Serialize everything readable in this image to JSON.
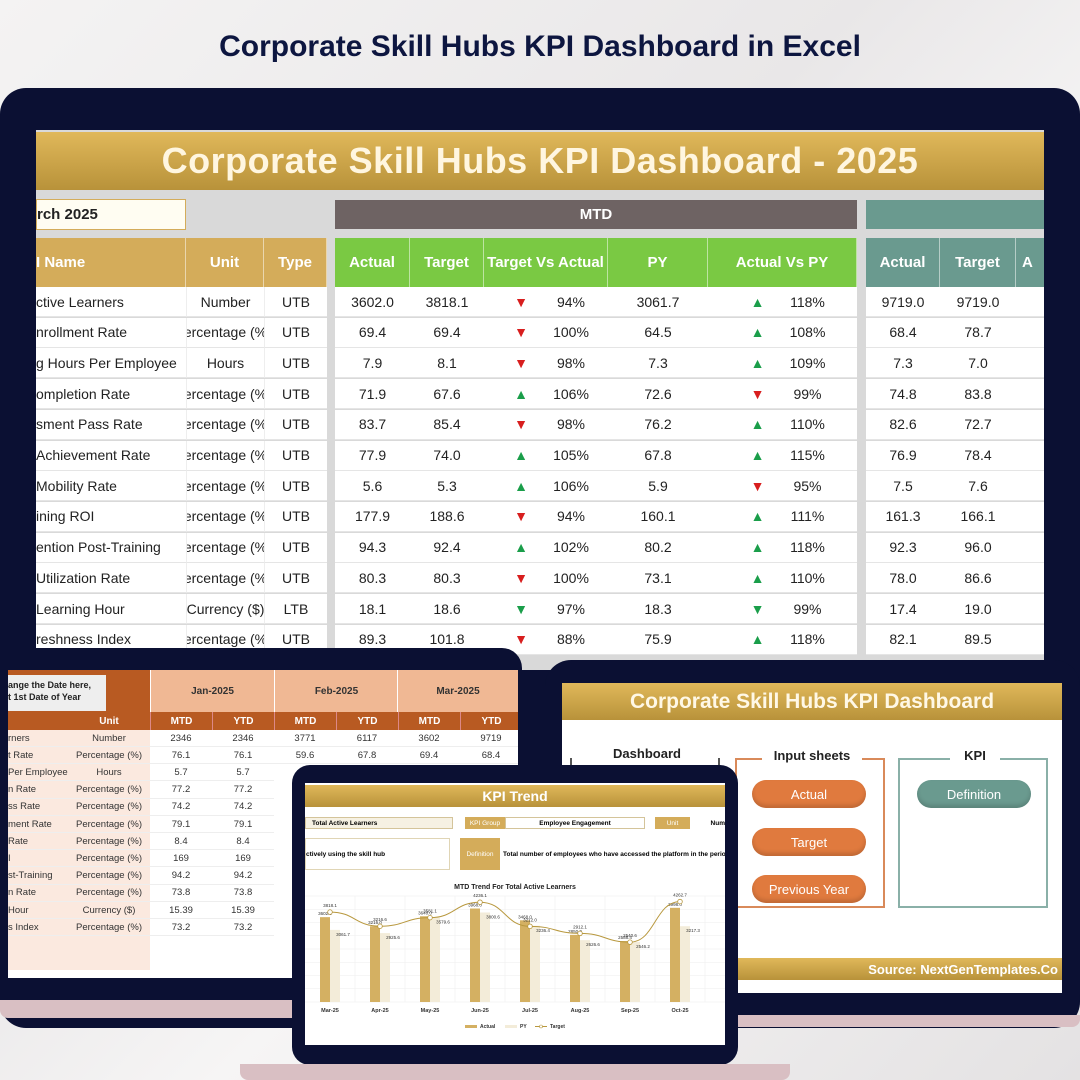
{
  "page_title": "Corporate Skill Hubs KPI Dashboard in Excel",
  "main": {
    "title": "Corporate Skill Hubs KPI Dashboard - 2025",
    "month_value": "rch 2025",
    "mtd_label": "MTD",
    "headers": {
      "name": "I Name",
      "unit": "Unit",
      "type": "Type",
      "actual": "Actual",
      "target": "Target",
      "tva": "Target Vs Actual",
      "py": "PY",
      "avpy": "Actual Vs PY",
      "ytd_actual": "Actual",
      "ytd_target": "Target",
      "ytd_next": "A"
    },
    "colors": {
      "gold": "#d4ac5a",
      "mtd_header": "#6e6363",
      "mtd_green": "#7ac943",
      "ytd_teal": "#6a9a8f",
      "up": "#1a9e4a",
      "down": "#d81e1e"
    },
    "rows": [
      {
        "name": "ctive Learners",
        "unit": "Number",
        "type": "UTB",
        "actual": "3602.0",
        "target": "3818.1",
        "tva_dir": "down",
        "tva_color": "red",
        "tva": "94%",
        "py": "3061.7",
        "avpy_dir": "up",
        "avpy_color": "green",
        "avpy": "118%",
        "ytd_actual": "9719.0",
        "ytd_target": "9719.0"
      },
      {
        "name": "nrollment Rate",
        "unit": "ercentage (%",
        "type": "UTB",
        "actual": "69.4",
        "target": "69.4",
        "tva_dir": "down",
        "tva_color": "red",
        "tva": "100%",
        "py": "64.5",
        "avpy_dir": "up",
        "avpy_color": "green",
        "avpy": "108%",
        "ytd_actual": "68.4",
        "ytd_target": "78.7"
      },
      {
        "name": "g Hours Per Employee",
        "unit": "Hours",
        "type": "UTB",
        "actual": "7.9",
        "target": "8.1",
        "tva_dir": "down",
        "tva_color": "red",
        "tva": "98%",
        "py": "7.3",
        "avpy_dir": "up",
        "avpy_color": "green",
        "avpy": "109%",
        "ytd_actual": "7.3",
        "ytd_target": "7.0"
      },
      {
        "name": "ompletion Rate",
        "unit": "ercentage (%",
        "type": "UTB",
        "actual": "71.9",
        "target": "67.6",
        "tva_dir": "up",
        "tva_color": "green",
        "tva": "106%",
        "py": "72.6",
        "avpy_dir": "down",
        "avpy_color": "red",
        "avpy": "99%",
        "ytd_actual": "74.8",
        "ytd_target": "83.8"
      },
      {
        "name": "sment Pass Rate",
        "unit": "ercentage (%",
        "type": "UTB",
        "actual": "83.7",
        "target": "85.4",
        "tva_dir": "down",
        "tva_color": "red",
        "tva": "98%",
        "py": "76.2",
        "avpy_dir": "up",
        "avpy_color": "green",
        "avpy": "110%",
        "ytd_actual": "82.6",
        "ytd_target": "72.7"
      },
      {
        "name": " Achievement Rate",
        "unit": "ercentage (%",
        "type": "UTB",
        "actual": "77.9",
        "target": "74.0",
        "tva_dir": "up",
        "tva_color": "green",
        "tva": "105%",
        "py": "67.8",
        "avpy_dir": "up",
        "avpy_color": "green",
        "avpy": "115%",
        "ytd_actual": "76.9",
        "ytd_target": "78.4"
      },
      {
        "name": " Mobility Rate",
        "unit": "ercentage (%",
        "type": "UTB",
        "actual": "5.6",
        "target": "5.3",
        "tva_dir": "up",
        "tva_color": "green",
        "tva": "106%",
        "py": "5.9",
        "avpy_dir": "down",
        "avpy_color": "red",
        "avpy": "95%",
        "ytd_actual": "7.5",
        "ytd_target": "7.6"
      },
      {
        "name": "ining ROI",
        "unit": "ercentage (%",
        "type": "UTB",
        "actual": "177.9",
        "target": "188.6",
        "tva_dir": "down",
        "tva_color": "red",
        "tva": "94%",
        "py": "160.1",
        "avpy_dir": "up",
        "avpy_color": "green",
        "avpy": "111%",
        "ytd_actual": "161.3",
        "ytd_target": "166.1"
      },
      {
        "name": "ention Post-Training",
        "unit": "ercentage (%",
        "type": "UTB",
        "actual": "94.3",
        "target": "92.4",
        "tva_dir": "up",
        "tva_color": "green",
        "tva": "102%",
        "py": "80.2",
        "avpy_dir": "up",
        "avpy_color": "green",
        "avpy": "118%",
        "ytd_actual": "92.3",
        "ytd_target": "96.0"
      },
      {
        "name": " Utilization Rate",
        "unit": "ercentage (%",
        "type": "UTB",
        "actual": "80.3",
        "target": "80.3",
        "tva_dir": "down",
        "tva_color": "red",
        "tva": "100%",
        "py": "73.1",
        "avpy_dir": "up",
        "avpy_color": "green",
        "avpy": "110%",
        "ytd_actual": "78.0",
        "ytd_target": "86.6"
      },
      {
        "name": " Learning Hour",
        "unit": "Currency ($)",
        "type": "LTB",
        "actual": "18.1",
        "target": "18.6",
        "tva_dir": "down",
        "tva_color": "green",
        "tva": "97%",
        "py": "18.3",
        "avpy_dir": "down",
        "avpy_color": "green",
        "avpy": "99%",
        "ytd_actual": "17.4",
        "ytd_target": "19.0"
      },
      {
        "name": "reshness Index",
        "unit": "ercentage (%",
        "type": "UTB",
        "actual": "89.3",
        "target": "101.8",
        "tva_dir": "down",
        "tva_color": "red",
        "tva": "88%",
        "py": "75.9",
        "avpy_dir": "up",
        "avpy_color": "green",
        "avpy": "118%",
        "ytd_actual": "82.1",
        "ytd_target": "89.5"
      }
    ]
  },
  "data_sheet": {
    "callout": [
      "ange the Date here,",
      "t 1st Date of Year"
    ],
    "months": [
      "Jan-2025",
      "Feb-2025",
      "Mar-2025"
    ],
    "unit_header": "Unit",
    "mtd": "MTD",
    "ytd": "YTD",
    "rows": [
      {
        "name": "rners",
        "unit": "Number",
        "vals": [
          "2346",
          "2346",
          "3771",
          "6117",
          "3602",
          "9719"
        ]
      },
      {
        "name": "t Rate",
        "unit": "Percentage (%)",
        "vals": [
          "76.1",
          "76.1",
          "59.6",
          "67.8",
          "69.4",
          "68.4"
        ]
      },
      {
        "name": "Per Employee",
        "unit": "Hours",
        "vals": [
          "5.7",
          "5.7"
        ]
      },
      {
        "name": "n Rate",
        "unit": "Percentage (%)",
        "vals": [
          "77.2",
          "77.2"
        ]
      },
      {
        "name": "ss Rate",
        "unit": "Percentage (%)",
        "vals": [
          "74.2",
          "74.2"
        ]
      },
      {
        "name": "ment Rate",
        "unit": "Percentage (%)",
        "vals": [
          "79.1",
          "79.1"
        ]
      },
      {
        "name": "Rate",
        "unit": "Percentage (%)",
        "vals": [
          "8.4",
          "8.4"
        ]
      },
      {
        "name": "I",
        "unit": "Percentage (%)",
        "vals": [
          "169",
          "169"
        ]
      },
      {
        "name": "st-Training",
        "unit": "Percentage (%)",
        "vals": [
          "94.2",
          "94.2"
        ]
      },
      {
        "name": "n Rate",
        "unit": "Percentage (%)",
        "vals": [
          "73.8",
          "73.8"
        ]
      },
      {
        "name": "Hour",
        "unit": "Currency ($)",
        "vals": [
          "15.39",
          "15.39"
        ]
      },
      {
        "name": "s Index",
        "unit": "Percentage (%)",
        "vals": [
          "73.2",
          "73.2"
        ]
      }
    ]
  },
  "kpi_trend": {
    "title": "KPI Trend",
    "kpi_name": "Total Active Learners",
    "kpi_group_label": "KPI Group",
    "kpi_group": "Employee Engagement",
    "unit_label": "Unit",
    "unit": "Num",
    "formula_text": "ctively using the skill hub",
    "definition_label": "Definition",
    "definition": "Total number of employees who have accessed the platform in the perio"
  },
  "chart_data": {
    "type": "bar",
    "title": "MTD Trend For Total Active Learners",
    "categories": [
      "Mar-25",
      "Apr-25",
      "May-25",
      "Jun-25",
      "Jul-25",
      "Aug-25",
      "Sep-25",
      "Oct-25"
    ],
    "series": [
      {
        "name": "Actual",
        "type": "bar",
        "color": "#d4b062",
        "values": [
          3602.0,
          3216.0,
          3640.0,
          3968.0,
          3468.0,
          2850.0,
          2588.4,
          3998.0
        ]
      },
      {
        "name": "PY",
        "type": "bar",
        "color": "#f3ecd9",
        "values": [
          3061.7,
          2925.6,
          3579.6,
          3800.6,
          3236.4,
          2626.6,
          2546.2,
          3217.3
        ]
      },
      {
        "name": "Target",
        "type": "line",
        "color": "#b8983e",
        "values": [
          3818.1,
          3216.6,
          3581.1,
          4236.1,
          3212.0,
          2912.1,
          2540.6,
          4262.7
        ]
      }
    ],
    "ylim": [
      0,
      4500
    ],
    "grid": true,
    "legend": "bottom"
  },
  "nav_dashboard": {
    "title": "Corporate Skill Hubs KPI Dashboard",
    "groups": {
      "dashboard": "Dashboard",
      "input": "Input sheets",
      "kpi": "KPI"
    },
    "buttons": {
      "actual": "Actual",
      "target": "Target",
      "previous_year": "Previous Year",
      "definition": "Definition"
    },
    "source": "Source: NextGenTemplates.Co"
  }
}
